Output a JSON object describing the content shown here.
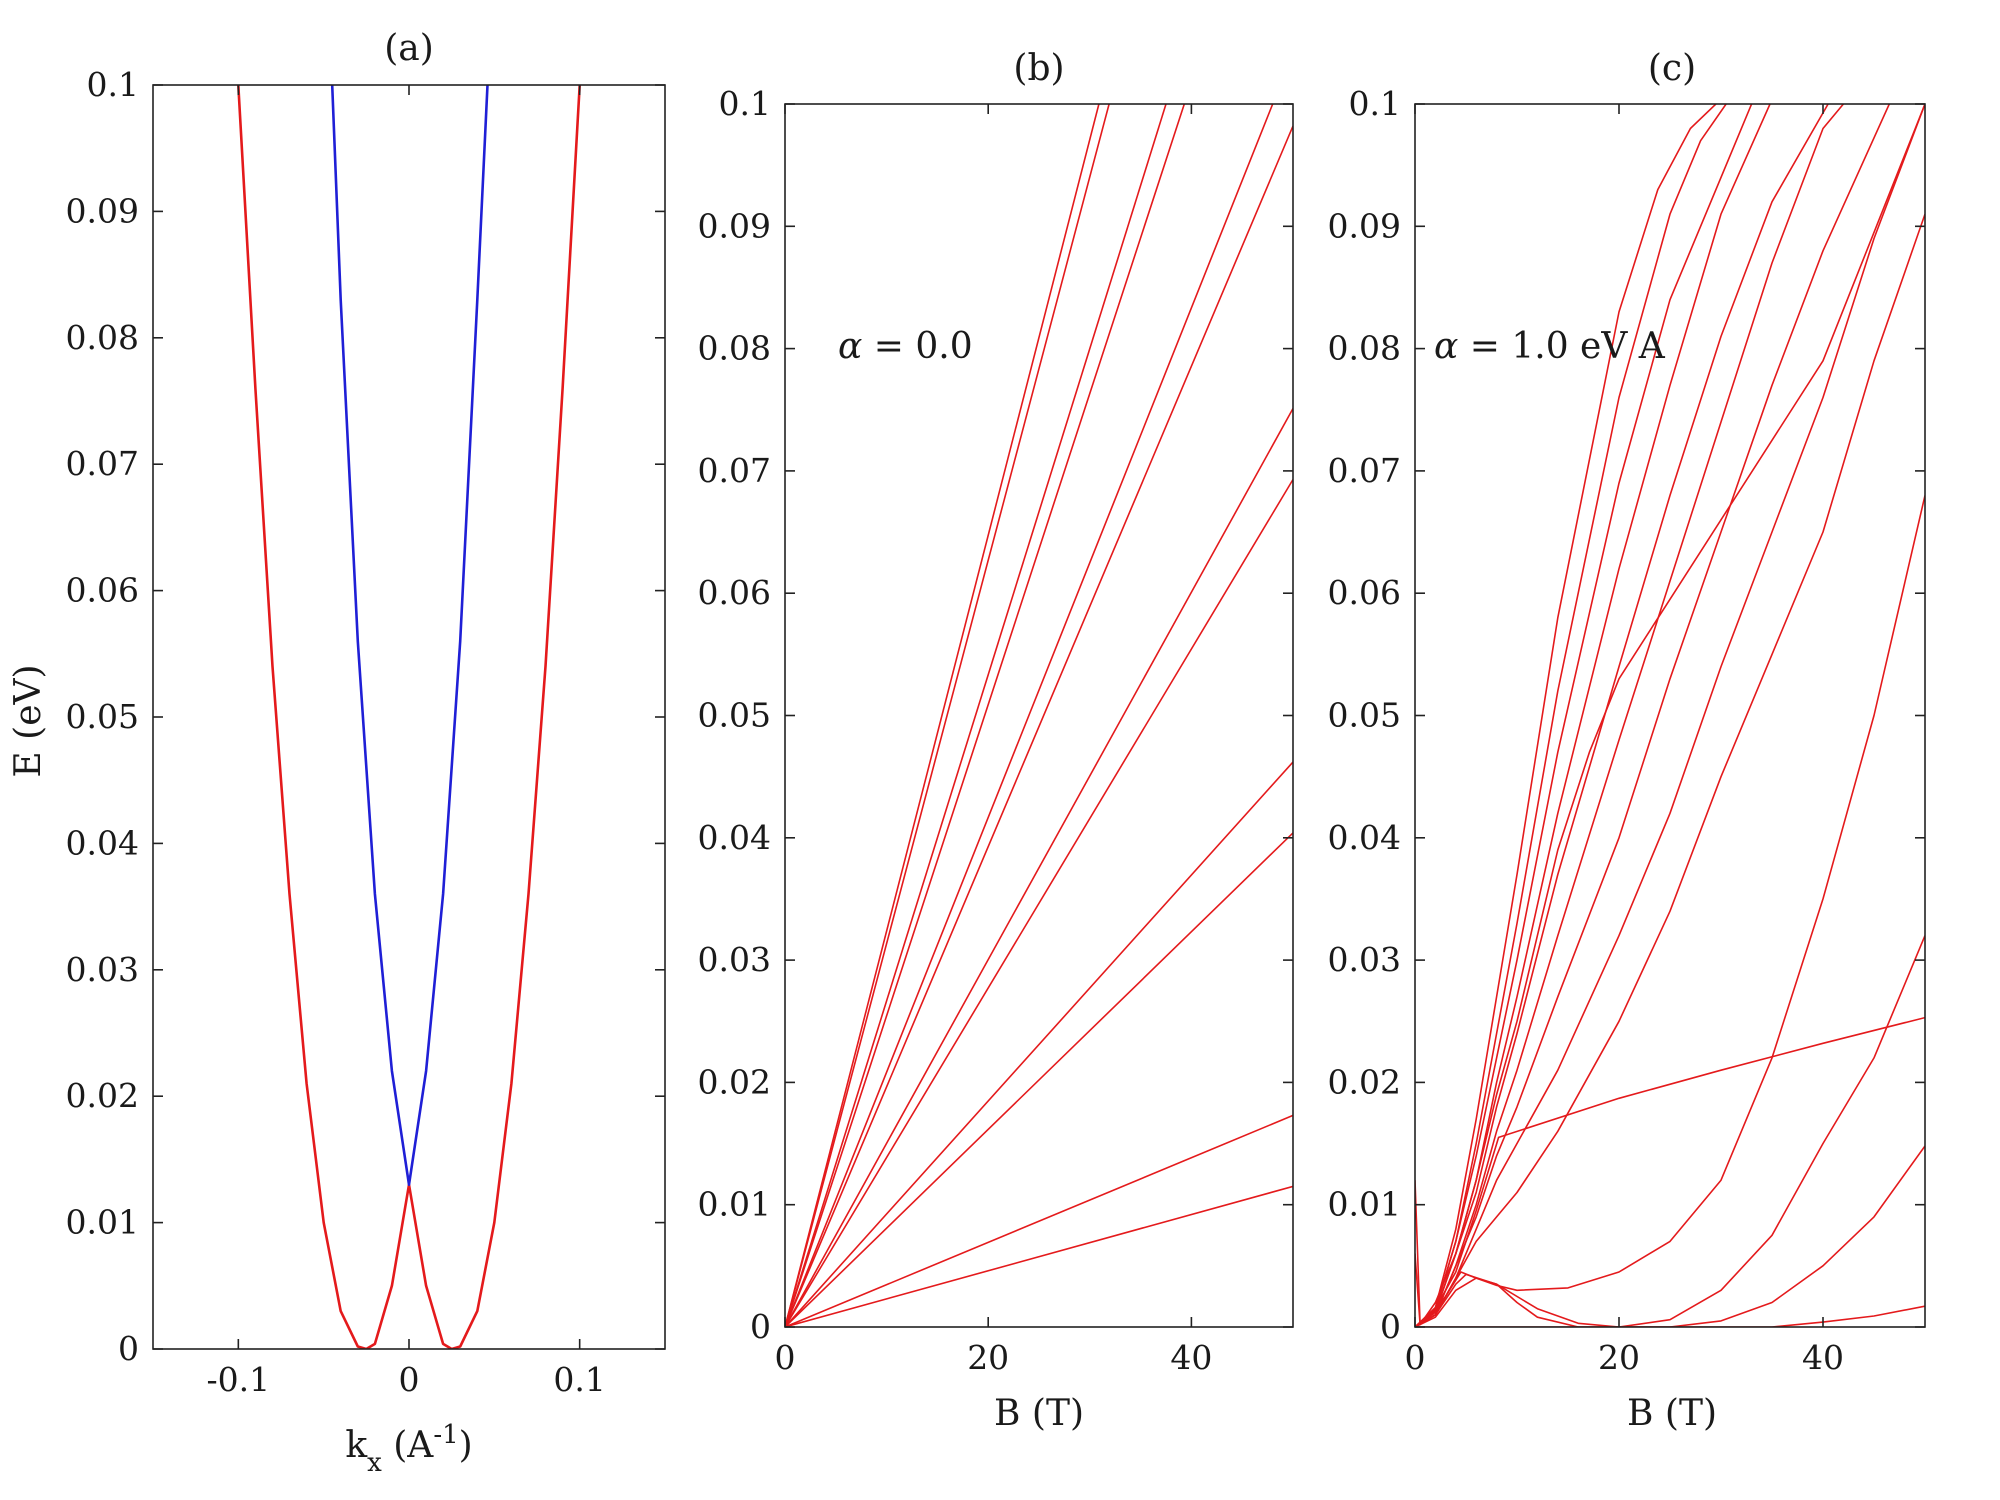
{
  "colors": {
    "red": "#e41a1c",
    "blue": "#1f1fd6",
    "axis": "#222222",
    "background": "#ffffff"
  },
  "chart_data": [
    {
      "panel": "a",
      "type": "line",
      "title": "(a)",
      "xlabel": "k",
      "xlabel_sub": "x",
      "xlabel_unit_open": " (A",
      "xlabel_sup": "-1",
      "xlabel_unit_close": ")",
      "ylabel": "E (eV)",
      "xlim": [
        -0.15,
        0.15
      ],
      "ylim": [
        0,
        0.1
      ],
      "xticks": [
        -0.1,
        0,
        0.1
      ],
      "xtick_labels": [
        "-0.1",
        "0",
        "0.1"
      ],
      "yticks": [
        0,
        0.01,
        0.02,
        0.03,
        0.04,
        0.05,
        0.06,
        0.07,
        0.08,
        0.09,
        0.1
      ],
      "ytick_labels": [
        "0",
        "0.01",
        "0.02",
        "0.03",
        "0.04",
        "0.05",
        "0.06",
        "0.07",
        "0.08",
        "0.09",
        "0.1"
      ],
      "grid": false,
      "series": [
        {
          "color": "red",
          "x": [
            -0.1,
            -0.09,
            -0.08,
            -0.07,
            -0.06,
            -0.05,
            -0.04,
            -0.03,
            -0.025,
            -0.02,
            -0.01,
            0,
            0.01,
            0.02,
            0.025,
            0.03,
            0.04,
            0.05,
            0.06,
            0.07,
            0.08,
            0.09,
            0.1
          ],
          "y": [
            0.1,
            0.076,
            0.054,
            0.036,
            0.021,
            0.01,
            0.003,
            0.0002,
            0.0,
            0.0004,
            0.005,
            0.013,
            0.005,
            0.0004,
            0.0,
            0.0002,
            0.003,
            0.01,
            0.021,
            0.036,
            0.054,
            0.076,
            0.1
          ]
        },
        {
          "color": "blue",
          "x": [
            -0.045,
            -0.04,
            -0.03,
            -0.02,
            -0.01,
            0,
            0.01,
            0.02,
            0.03,
            0.04,
            0.046
          ],
          "y": [
            0.1,
            0.083,
            0.056,
            0.036,
            0.022,
            0.013,
            0.022,
            0.036,
            0.056,
            0.083,
            0.1
          ]
        }
      ]
    },
    {
      "panel": "b",
      "type": "line",
      "title": "(b)",
      "xlabel": "B (T)",
      "ylabel": "",
      "annotation_symbol": "α",
      "annotation_text": " = 0.0",
      "xlim": [
        0,
        50
      ],
      "ylim": [
        0,
        0.1
      ],
      "xticks": [
        0,
        20,
        40
      ],
      "xtick_labels": [
        "0",
        "20",
        "40"
      ],
      "yticks": [
        0,
        0.01,
        0.02,
        0.03,
        0.04,
        0.05,
        0.06,
        0.07,
        0.08,
        0.09,
        0.1
      ],
      "ytick_labels": [
        "0",
        "0.01",
        "0.02",
        "0.03",
        "0.04",
        "0.05",
        "0.06",
        "0.07",
        "0.08",
        "0.09",
        "0.1"
      ],
      "grid": false,
      "series": [
        {
          "color": "red",
          "x": [
            0,
            50
          ],
          "y": [
            0,
            0.0115
          ]
        },
        {
          "color": "red",
          "x": [
            0,
            50
          ],
          "y": [
            0,
            0.0173
          ]
        },
        {
          "color": "red",
          "x": [
            0,
            50
          ],
          "y": [
            0,
            0.0404
          ]
        },
        {
          "color": "red",
          "x": [
            0,
            50
          ],
          "y": [
            0,
            0.0462
          ]
        },
        {
          "color": "red",
          "x": [
            0,
            50
          ],
          "y": [
            0,
            0.0693
          ]
        },
        {
          "color": "red",
          "x": [
            0,
            50
          ],
          "y": [
            0,
            0.0751
          ]
        },
        {
          "color": "red",
          "x": [
            0,
            50
          ],
          "y": [
            0,
            0.0982
          ]
        },
        {
          "color": "red",
          "x": [
            0,
            48.0
          ],
          "y": [
            0,
            0.1
          ]
        },
        {
          "color": "red",
          "x": [
            0,
            39.3
          ],
          "y": [
            0,
            0.1
          ]
        },
        {
          "color": "red",
          "x": [
            0,
            37.5
          ],
          "y": [
            0,
            0.1
          ]
        },
        {
          "color": "red",
          "x": [
            0,
            31.9
          ],
          "y": [
            0,
            0.1
          ]
        },
        {
          "color": "red",
          "x": [
            0,
            30.9
          ],
          "y": [
            0,
            0.1
          ]
        }
      ]
    },
    {
      "panel": "c",
      "type": "line",
      "title": "(c)",
      "xlabel": "B (T)",
      "ylabel": "",
      "annotation_symbol": "α",
      "annotation_text": " = 1.0 eV A",
      "xlim": [
        0,
        50
      ],
      "ylim": [
        0,
        0.1
      ],
      "xticks": [
        0,
        20,
        40
      ],
      "xtick_labels": [
        "0",
        "20",
        "40"
      ],
      "yticks": [
        0,
        0.01,
        0.02,
        0.03,
        0.04,
        0.05,
        0.06,
        0.07,
        0.08,
        0.09,
        0.1
      ],
      "ytick_labels": [
        "0",
        "0.01",
        "0.02",
        "0.03",
        "0.04",
        "0.05",
        "0.06",
        "0.07",
        "0.08",
        "0.09",
        "0.1"
      ],
      "grid": false,
      "series": [
        {
          "color": "red",
          "x": [
            0,
            0.5,
            2,
            4,
            6,
            8.2,
            20,
            30,
            40,
            50
          ],
          "y": [
            0.012,
            0.0002,
            0.0015,
            0.0045,
            0.0095,
            0.0155,
            0.0187,
            0.021,
            0.0232,
            0.0253
          ]
        },
        {
          "color": "red",
          "x": [
            0,
            0.5,
            2,
            4,
            6,
            8,
            10,
            12,
            14,
            17.1,
            20,
            30,
            40,
            50
          ],
          "y": [
            0.006,
            0.0002,
            0.002,
            0.006,
            0.012,
            0.019,
            0.025,
            0.032,
            0.039,
            0.047,
            0.053,
            0.066,
            0.079,
            0.1
          ]
        },
        {
          "color": "red",
          "x": [
            0,
            1,
            3,
            4.5,
            6,
            8,
            10,
            15,
            20,
            25,
            30,
            35,
            40,
            45,
            50
          ],
          "y": [
            0.0,
            0.0005,
            0.0025,
            0.0045,
            0.004,
            0.0034,
            0.003,
            0.0032,
            0.0045,
            0.007,
            0.012,
            0.022,
            0.035,
            0.05,
            0.068
          ]
        },
        {
          "color": "red",
          "x": [
            0,
            2,
            4,
            5,
            8,
            12,
            16,
            20,
            25,
            30,
            35,
            40,
            45,
            50
          ],
          "y": [
            0.0,
            0.001,
            0.0035,
            0.0043,
            0.0035,
            0.0015,
            0.0003,
            0.0,
            0.0006,
            0.003,
            0.0075,
            0.015,
            0.022,
            0.032
          ]
        },
        {
          "color": "red",
          "x": [
            0,
            2,
            4,
            6,
            8,
            10,
            12,
            16,
            20,
            25,
            30,
            35,
            40,
            45,
            50
          ],
          "y": [
            0.0,
            0.0008,
            0.003,
            0.004,
            0.0035,
            0.002,
            0.0008,
            0.0,
            0.0,
            0.0,
            0.0005,
            0.002,
            0.005,
            0.009,
            0.0148
          ]
        },
        {
          "color": "red",
          "x": [
            0,
            5,
            10,
            15,
            20,
            25,
            30,
            35,
            40,
            45,
            50
          ],
          "y": [
            0.0,
            0.0,
            0.0,
            0.0,
            0.0,
            0.0,
            0.0,
            0.0,
            0.0004,
            0.0009,
            0.0017
          ]
        },
        {
          "color": "red",
          "x": [
            0,
            2,
            4,
            6,
            8,
            10,
            14,
            20,
            25,
            30,
            35,
            40,
            45,
            50
          ],
          "y": [
            0.0,
            0.001,
            0.004,
            0.007,
            0.009,
            0.011,
            0.016,
            0.025,
            0.034,
            0.045,
            0.055,
            0.065,
            0.079,
            0.091
          ]
        },
        {
          "color": "red",
          "x": [
            0,
            2,
            4,
            6,
            8,
            10,
            14,
            20,
            25,
            30,
            35,
            40,
            45,
            50
          ],
          "y": [
            0.0,
            0.001,
            0.004,
            0.008,
            0.012,
            0.015,
            0.021,
            0.032,
            0.042,
            0.054,
            0.065,
            0.076,
            0.089,
            0.1
          ]
        },
        {
          "color": "red",
          "x": [
            0,
            2,
            4,
            6,
            8,
            10,
            14,
            20,
            25,
            30,
            35,
            40,
            46.5
          ],
          "y": [
            0.0,
            0.001,
            0.005,
            0.009,
            0.014,
            0.018,
            0.027,
            0.04,
            0.053,
            0.065,
            0.077,
            0.088,
            0.1
          ]
        },
        {
          "color": "red",
          "x": [
            0,
            2,
            4,
            6,
            8,
            10,
            14,
            20,
            25,
            30,
            35,
            40,
            42
          ],
          "y": [
            0.0,
            0.001,
            0.005,
            0.01,
            0.016,
            0.021,
            0.032,
            0.048,
            0.061,
            0.074,
            0.087,
            0.098,
            0.1
          ]
        },
        {
          "color": "red",
          "x": [
            0,
            2,
            4,
            6,
            8,
            10,
            14,
            20,
            25,
            30,
            35,
            40.5
          ],
          "y": [
            0.0,
            0.0012,
            0.006,
            0.011,
            0.018,
            0.024,
            0.037,
            0.054,
            0.068,
            0.081,
            0.092,
            0.1
          ]
        },
        {
          "color": "red",
          "x": [
            0,
            2,
            4,
            6,
            8,
            10,
            14,
            20,
            25,
            30,
            34.8
          ],
          "y": [
            0.0,
            0.0013,
            0.006,
            0.012,
            0.02,
            0.027,
            0.042,
            0.062,
            0.077,
            0.091,
            0.1
          ]
        },
        {
          "color": "red",
          "x": [
            0,
            2,
            4,
            6,
            8,
            10,
            14,
            20,
            25,
            30,
            33
          ],
          "y": [
            0.0,
            0.0014,
            0.007,
            0.014,
            0.022,
            0.03,
            0.047,
            0.069,
            0.084,
            0.094,
            0.1
          ]
        },
        {
          "color": "red",
          "x": [
            0,
            2,
            4,
            6,
            8,
            10,
            14,
            20,
            25,
            28,
            30.5
          ],
          "y": [
            0.0,
            0.0015,
            0.007,
            0.015,
            0.024,
            0.033,
            0.052,
            0.076,
            0.091,
            0.097,
            0.1
          ]
        },
        {
          "color": "red",
          "x": [
            0,
            2,
            4,
            6,
            8,
            10,
            14,
            20,
            23.8,
            27,
            29.5
          ],
          "y": [
            0.0,
            0.0016,
            0.008,
            0.017,
            0.027,
            0.037,
            0.058,
            0.083,
            0.093,
            0.098,
            0.1
          ]
        }
      ]
    }
  ]
}
